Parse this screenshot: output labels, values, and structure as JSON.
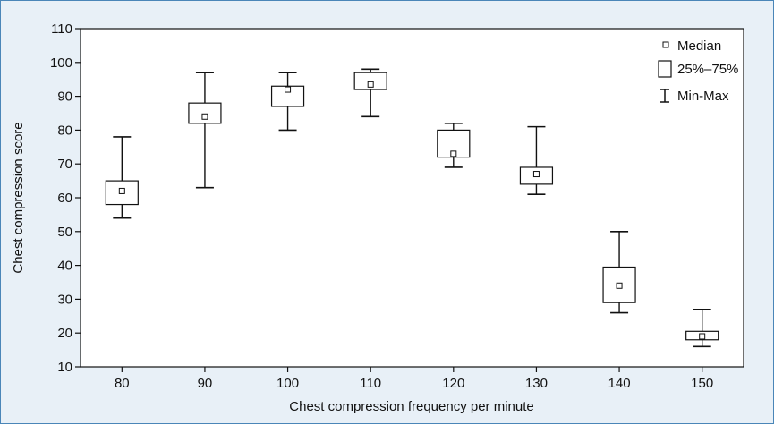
{
  "chart_data": {
    "type": "box",
    "xlabel": "Chest compression frequency per minute",
    "ylabel": "Chest compression score",
    "ylim": [
      10,
      110
    ],
    "yticks": [
      10,
      20,
      30,
      40,
      50,
      60,
      70,
      80,
      90,
      100,
      110
    ],
    "categories": [
      "80",
      "90",
      "100",
      "110",
      "120",
      "130",
      "140",
      "150"
    ],
    "boxes": [
      {
        "min": 54,
        "q1": 58,
        "median": 62,
        "q3": 65,
        "max": 78
      },
      {
        "min": 63,
        "q1": 82,
        "median": 84,
        "q3": 88,
        "max": 97
      },
      {
        "min": 80,
        "q1": 87,
        "median": 92,
        "q3": 93,
        "max": 97
      },
      {
        "min": 84,
        "q1": 92,
        "median": 93.5,
        "q3": 97,
        "max": 98
      },
      {
        "min": 69,
        "q1": 72,
        "median": 73,
        "q3": 80,
        "max": 82
      },
      {
        "min": 61,
        "q1": 64,
        "median": 67,
        "q3": 69,
        "max": 81
      },
      {
        "min": 26,
        "q1": 29,
        "median": 34,
        "q3": 39.5,
        "max": 50
      },
      {
        "min": 16,
        "q1": 18,
        "median": 19,
        "q3": 20.5,
        "max": 27
      }
    ],
    "legend": {
      "position": "top-right",
      "items": [
        "Median",
        "25%–75%",
        "Min-Max"
      ]
    },
    "colors": {
      "frame_border": "#4a86b8",
      "outer_background": "#e8f0f7",
      "plot_background": "#ffffff",
      "ink": "#111111"
    }
  }
}
